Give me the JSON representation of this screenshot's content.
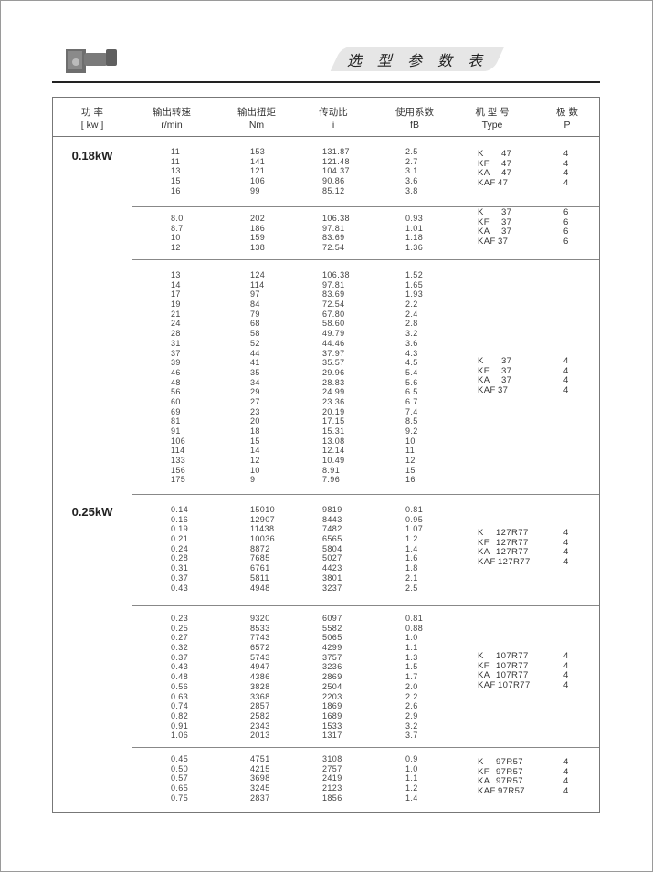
{
  "header": {
    "title": "选 型 参 数 表",
    "logo_icon": "gear-motor-image"
  },
  "table": {
    "columns": [
      {
        "cn": "功  率",
        "en": "[ kw ]"
      },
      {
        "cn": "输出转速",
        "en": "r/min"
      },
      {
        "cn": "输出扭矩",
        "en": "Nm"
      },
      {
        "cn": "传动比",
        "en": "i"
      },
      {
        "cn": "使用系数",
        "en": "fB"
      },
      {
        "cn": "机 型 号",
        "en": "Type"
      },
      {
        "cn": "极  数",
        "en": "P"
      }
    ],
    "power_labels": [
      "0.18kW",
      "0.25kW"
    ],
    "groups": [
      {
        "power": "0.18kW",
        "rows": [
          [
            "11",
            "153",
            "131.87",
            "2.5"
          ],
          [
            "11",
            "141",
            "121.48",
            "2.7"
          ],
          [
            "13",
            "121",
            "104.37",
            "3.1"
          ],
          [
            "15",
            "106",
            "90.86",
            "3.6"
          ],
          [
            "16",
            "99",
            "85.12",
            "3.8"
          ]
        ],
        "types": [
          [
            "K",
            "47",
            "4"
          ],
          [
            "KF",
            "47",
            "4"
          ],
          [
            "KA",
            "47",
            "4"
          ],
          [
            "KAF",
            "47",
            "4"
          ]
        ]
      },
      {
        "power": "0.18kW",
        "rows": [
          [
            "8.0",
            "202",
            "106.38",
            "0.93"
          ],
          [
            "8.7",
            "186",
            "97.81",
            "1.01"
          ],
          [
            "10",
            "159",
            "83.69",
            "1.18"
          ],
          [
            "12",
            "138",
            "72.54",
            "1.36"
          ]
        ],
        "types": [
          [
            "K",
            "37",
            "6"
          ],
          [
            "KF",
            "37",
            "6"
          ],
          [
            "KA",
            "37",
            "6"
          ],
          [
            "KAF",
            "37",
            "6"
          ]
        ]
      },
      {
        "power": "0.18kW",
        "rows": [
          [
            "13",
            "124",
            "106.38",
            "1.52"
          ],
          [
            "14",
            "114",
            "97.81",
            "1.65"
          ],
          [
            "17",
            "97",
            "83.69",
            "1.93"
          ],
          [
            "19",
            "84",
            "72.54",
            "2.2"
          ],
          [
            "21",
            "79",
            "67.80",
            "2.4"
          ],
          [
            "24",
            "68",
            "58.60",
            "2.8"
          ],
          [
            "28",
            "58",
            "49.79",
            "3.2"
          ],
          [
            "31",
            "52",
            "44.46",
            "3.6"
          ],
          [
            "37",
            "44",
            "37.97",
            "4.3"
          ],
          [
            "39",
            "41",
            "35.57",
            "4.5"
          ],
          [
            "46",
            "35",
            "29.96",
            "5.4"
          ],
          [
            "48",
            "34",
            "28.83",
            "5.6"
          ],
          [
            "56",
            "29",
            "24.99",
            "6.5"
          ],
          [
            "60",
            "27",
            "23.36",
            "6.7"
          ],
          [
            "69",
            "23",
            "20.19",
            "7.4"
          ],
          [
            "81",
            "20",
            "17.15",
            "8.5"
          ],
          [
            "91",
            "18",
            "15.31",
            "9.2"
          ],
          [
            "106",
            "15",
            "13.08",
            "10"
          ],
          [
            "114",
            "14",
            "12.14",
            "11"
          ],
          [
            "133",
            "12",
            "10.49",
            "12"
          ],
          [
            "156",
            "10",
            "8.91",
            "15"
          ],
          [
            "175",
            "9",
            "7.96",
            "16"
          ]
        ],
        "types": [
          [
            "K",
            "37",
            "4"
          ],
          [
            "KF",
            "37",
            "4"
          ],
          [
            "KA",
            "37",
            "4"
          ],
          [
            "KAF",
            "37",
            "4"
          ]
        ]
      },
      {
        "power": "0.25kW",
        "rows": [
          [
            "0.14",
            "15010",
            "9819",
            "0.81"
          ],
          [
            "0.16",
            "12907",
            "8443",
            "0.95"
          ],
          [
            "0.19",
            "11438",
            "7482",
            "1.07"
          ],
          [
            "0.21",
            "10036",
            "6565",
            "1.2"
          ],
          [
            "0.24",
            "8872",
            "5804",
            "1.4"
          ],
          [
            "0.28",
            "7685",
            "5027",
            "1.6"
          ],
          [
            "0.31",
            "6761",
            "4423",
            "1.8"
          ],
          [
            "0.37",
            "5811",
            "3801",
            "2.1"
          ],
          [
            "0.43",
            "4948",
            "3237",
            "2.5"
          ]
        ],
        "types": [
          [
            "K",
            "127R77",
            "4"
          ],
          [
            "KF",
            "127R77",
            "4"
          ],
          [
            "KA",
            "127R77",
            "4"
          ],
          [
            "KAF",
            "127R77",
            "4"
          ]
        ]
      },
      {
        "power": "0.25kW",
        "rows": [
          [
            "0.23",
            "9320",
            "6097",
            "0.81"
          ],
          [
            "0.25",
            "8533",
            "5582",
            "0.88"
          ],
          [
            "0.27",
            "7743",
            "5065",
            "1.0"
          ],
          [
            "0.32",
            "6572",
            "4299",
            "1.1"
          ],
          [
            "0.37",
            "5743",
            "3757",
            "1.3"
          ],
          [
            "0.43",
            "4947",
            "3236",
            "1.5"
          ],
          [
            "0.48",
            "4386",
            "2869",
            "1.7"
          ],
          [
            "0.56",
            "3828",
            "2504",
            "2.0"
          ],
          [
            "0.63",
            "3368",
            "2203",
            "2.2"
          ],
          [
            "0.74",
            "2857",
            "1869",
            "2.6"
          ],
          [
            "0.82",
            "2582",
            "1689",
            "2.9"
          ],
          [
            "0.91",
            "2343",
            "1533",
            "3.2"
          ],
          [
            "1.06",
            "2013",
            "1317",
            "3.7"
          ]
        ],
        "types": [
          [
            "K",
            "107R77",
            "4"
          ],
          [
            "KF",
            "107R77",
            "4"
          ],
          [
            "KA",
            "107R77",
            "4"
          ],
          [
            "KAF",
            "107R77",
            "4"
          ]
        ]
      },
      {
        "power": "0.25kW",
        "rows": [
          [
            "0.45",
            "4751",
            "3108",
            "0.9"
          ],
          [
            "0.50",
            "4215",
            "2757",
            "1.0"
          ],
          [
            "0.57",
            "3698",
            "2419",
            "1.1"
          ],
          [
            "0.65",
            "3245",
            "2123",
            "1.2"
          ],
          [
            "0.75",
            "2837",
            "1856",
            "1.4"
          ]
        ],
        "types": [
          [
            "K",
            "97R57",
            "4"
          ],
          [
            "KF",
            "97R57",
            "4"
          ],
          [
            "KA",
            "97R57",
            "4"
          ],
          [
            "KAF",
            "97R57",
            "4"
          ]
        ]
      }
    ]
  }
}
